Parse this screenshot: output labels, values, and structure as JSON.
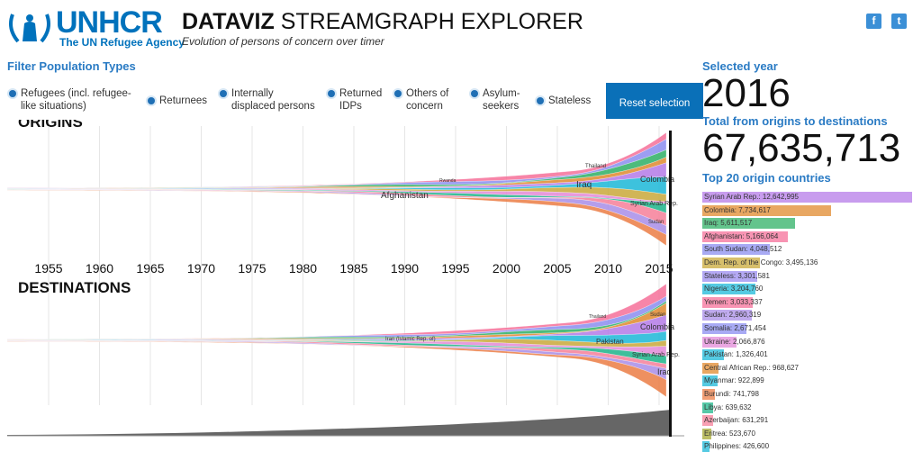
{
  "header": {
    "logo_text": "UNHCR",
    "logo_sub": "The UN Refugee Agency",
    "title_bold": "DATAVIZ",
    "title_rest": " STREAMGRAPH EXPLORER",
    "subtitle": "Evolution of persons of concern over timer",
    "social": [
      "f",
      "t"
    ]
  },
  "filters": {
    "title": "Filter Population Types",
    "items": [
      "Refugees (incl. refugee-like situations)",
      "Returnees",
      "Internally displaced persons",
      "Returned IDPs",
      "Others of concern",
      "Asylum-seekers",
      "Stateless"
    ],
    "reset_label": "Reset selection"
  },
  "stream": {
    "origins_label": "ORIGINS",
    "destinations_label": "DESTINATIONS",
    "years": [
      "1955",
      "1960",
      "1965",
      "1970",
      "1975",
      "1980",
      "1985",
      "1990",
      "1995",
      "2000",
      "2005",
      "2010",
      "2015"
    ],
    "origin_labels": [
      "Afghanistan",
      "Iraq",
      "Colombia",
      "Syrian Arab Rep.",
      "Sudan",
      "Thailand",
      "Rwanda"
    ],
    "destination_labels": [
      "Iran (Islamic Rep. of)",
      "Pakistan",
      "Colombia",
      "Syrian Arab Rep.",
      "Sudan",
      "Iraq",
      "Thailand"
    ]
  },
  "panel": {
    "selected_year_label": "Selected year",
    "selected_year": "2016",
    "total_label": "Total from origins to destinations",
    "total": "67,635,713",
    "top_label": "Top 20 origin countries"
  },
  "chart_data": {
    "type": "bar",
    "title": "Top 20 origin countries",
    "orientation": "horizontal",
    "categories": [
      "Syrian Arab Rep.",
      "Colombia",
      "Iraq",
      "Afghanistan",
      "South Sudan",
      "Dem. Rep. of the Congo",
      "Stateless",
      "Nigeria",
      "Yemen",
      "Sudan",
      "Somalia",
      "Ukraine",
      "Pakistan",
      "Central African Rep.",
      "Myanmar",
      "Burundi",
      "Libya",
      "Azerbaijan",
      "Eritrea",
      "Philippines"
    ],
    "values": [
      12642995,
      7734617,
      5611517,
      5166064,
      4048512,
      3495136,
      3301581,
      3204760,
      3033337,
      2960319,
      2671454,
      2066876,
      1326401,
      968627,
      922899,
      741798,
      639632,
      631291,
      523670,
      426600
    ],
    "labels": [
      "12,642,995",
      "7,734,617",
      "5,611,517",
      "5,166,064",
      "4,048,512",
      "3,495,136",
      "3,301,581",
      "3,204,760",
      "3,033,337",
      "2,960,319",
      "2,671,454",
      "2,066,876",
      "1,326,401",
      "968,627",
      "922,899",
      "741,798",
      "639,632",
      "631,291",
      "523,670",
      "426,600"
    ],
    "colors": [
      "#b57be8",
      "#e08a2e",
      "#2fb066",
      "#f6709a",
      "#8b8ef0",
      "#c9a93a",
      "#9b8cf0",
      "#1cb8d8",
      "#f6709a",
      "#a98ee8",
      "#8b8ef0",
      "#e38ad8",
      "#1cb8d8",
      "#e08a2e",
      "#1cb8d8",
      "#ec7d45",
      "#1db58a",
      "#f6809a",
      "#a5a832",
      "#1cb8d8"
    ]
  }
}
